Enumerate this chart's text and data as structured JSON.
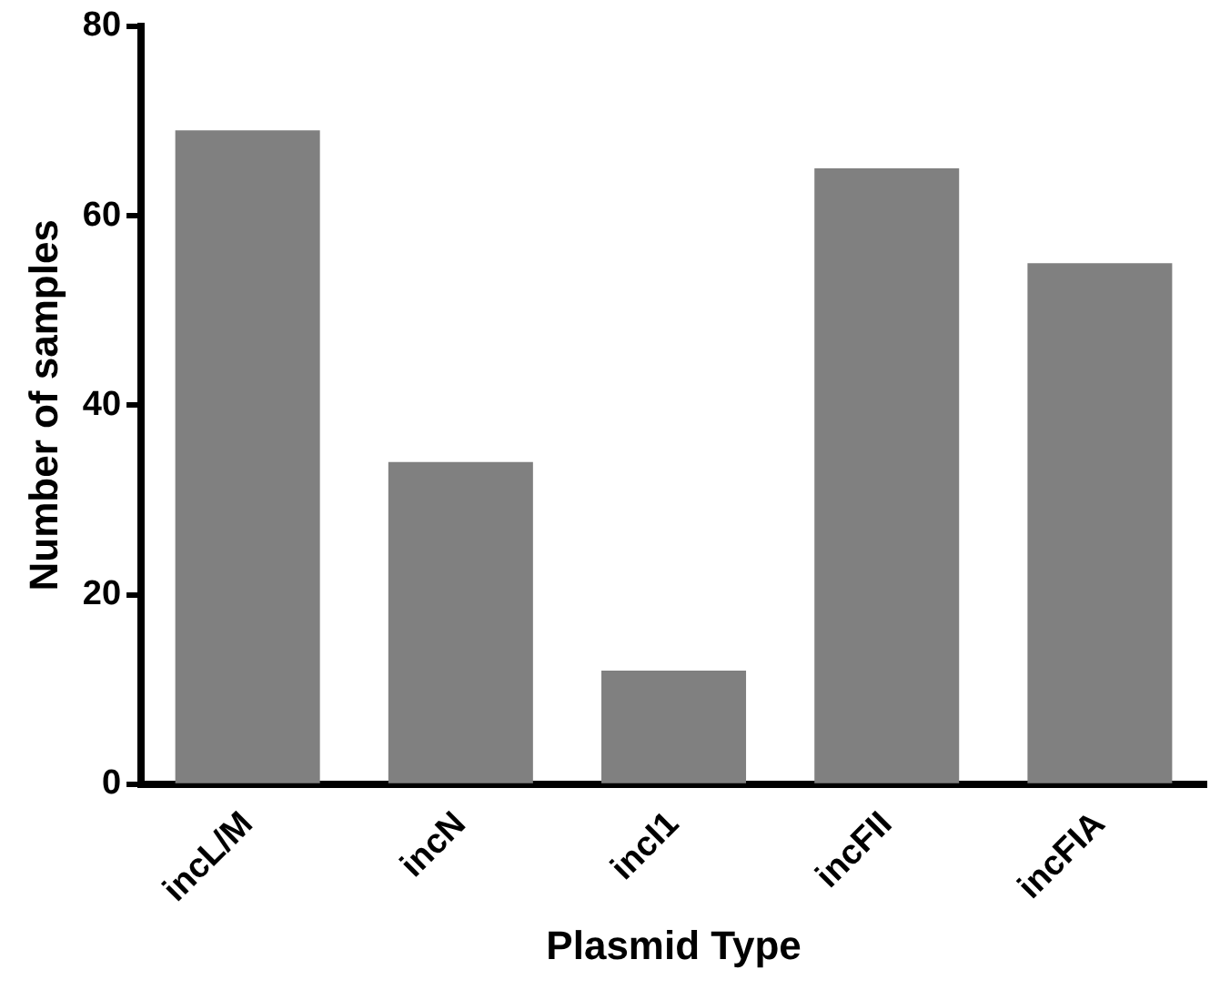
{
  "chart_data": {
    "type": "bar",
    "xlabel": "Plasmid Type",
    "ylabel": "Number of samples",
    "categories": [
      "incL/M",
      "incN",
      "incI1",
      "incFII",
      "incFIA"
    ],
    "values": [
      69,
      34,
      12,
      65,
      55
    ],
    "color": "#808080",
    "ylim": [
      0,
      80
    ],
    "yticks": [
      0,
      20,
      40,
      60,
      80
    ],
    "grid": false,
    "legend": false
  }
}
